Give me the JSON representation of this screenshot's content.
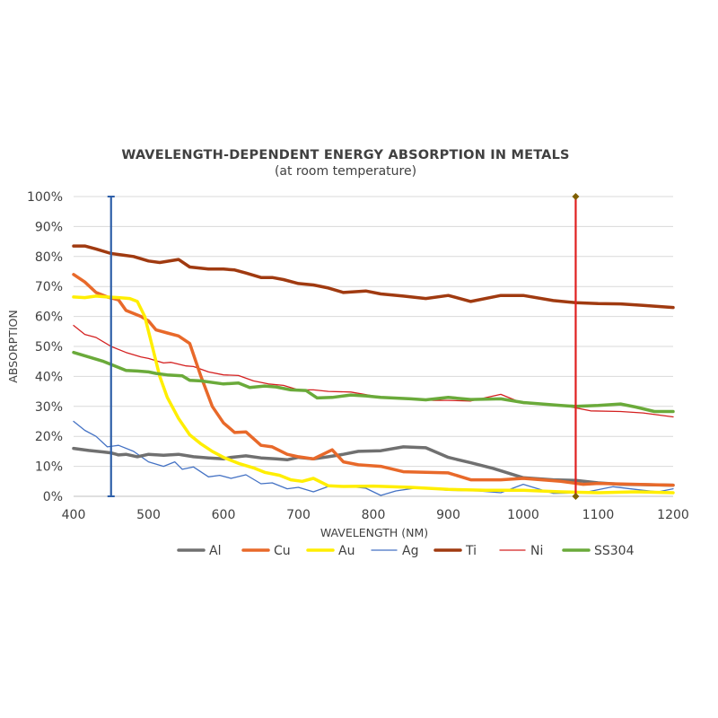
{
  "chart_data": {
    "type": "line",
    "title": "WAVELENGTH-DEPENDENT ENERGY ABSORPTION IN METALS",
    "subtitle": "(at room temperature)",
    "xlabel": "WAVELENGTH (NM)",
    "ylabel": "ABSORPTION",
    "xlim": [
      400,
      1200
    ],
    "ylim": [
      0,
      100
    ],
    "x_ticks": [
      "400",
      "500",
      "600",
      "700",
      "800",
      "900",
      "1000",
      "1100",
      "1200"
    ],
    "y_ticks": [
      "0%",
      "10%",
      "20%",
      "30%",
      "40%",
      "50%",
      "60%",
      "70%",
      "80%",
      "90%",
      "100%"
    ],
    "grid": true,
    "legend_position": "bottom",
    "markers": [
      {
        "x": 450,
        "y_range": [
          0,
          100
        ],
        "color": "#2e5fa8"
      },
      {
        "x": 1070,
        "y_range": [
          0,
          100
        ],
        "color": "#e02020",
        "end_color": "#7f5f00"
      }
    ],
    "series": [
      {
        "name": "Al",
        "color": "#707070",
        "width": 3.5,
        "points": [
          [
            400,
            16
          ],
          [
            420,
            15.3
          ],
          [
            440,
            14.8
          ],
          [
            450,
            14.5
          ],
          [
            460,
            13.8
          ],
          [
            470,
            14
          ],
          [
            485,
            13.2
          ],
          [
            500,
            14
          ],
          [
            520,
            13.7
          ],
          [
            540,
            14
          ],
          [
            560,
            13.2
          ],
          [
            580,
            12.8
          ],
          [
            600,
            12.5
          ],
          [
            610,
            13
          ],
          [
            630,
            13.5
          ],
          [
            650,
            12.8
          ],
          [
            670,
            12.5
          ],
          [
            685,
            12.2
          ],
          [
            700,
            13
          ],
          [
            720,
            12.5
          ],
          [
            740,
            13.2
          ],
          [
            760,
            14
          ],
          [
            780,
            15
          ],
          [
            810,
            15.2
          ],
          [
            840,
            16.5
          ],
          [
            870,
            16.2
          ],
          [
            900,
            13
          ],
          [
            930,
            11.2
          ],
          [
            960,
            9.3
          ],
          [
            1000,
            6.2
          ],
          [
            1040,
            5.5
          ],
          [
            1070,
            5.3
          ],
          [
            1100,
            4.5
          ],
          [
            1130,
            4
          ],
          [
            1160,
            3.9
          ],
          [
            1200,
            3.7
          ]
        ]
      },
      {
        "name": "Cu",
        "color": "#e8692a",
        "width": 3.5,
        "points": [
          [
            400,
            74
          ],
          [
            415,
            71.5
          ],
          [
            430,
            68
          ],
          [
            445,
            66.5
          ],
          [
            460,
            65.5
          ],
          [
            470,
            62
          ],
          [
            490,
            60
          ],
          [
            500,
            58.5
          ],
          [
            510,
            55.5
          ],
          [
            525,
            54.5
          ],
          [
            540,
            53.5
          ],
          [
            555,
            51
          ],
          [
            570,
            40
          ],
          [
            585,
            30
          ],
          [
            600,
            24.5
          ],
          [
            615,
            21.3
          ],
          [
            630,
            21.5
          ],
          [
            650,
            17
          ],
          [
            665,
            16.5
          ],
          [
            685,
            14
          ],
          [
            700,
            13.2
          ],
          [
            720,
            12.5
          ],
          [
            745,
            15.5
          ],
          [
            760,
            11.5
          ],
          [
            780,
            10.5
          ],
          [
            810,
            10
          ],
          [
            840,
            8.2
          ],
          [
            870,
            8
          ],
          [
            900,
            7.8
          ],
          [
            930,
            5.5
          ],
          [
            970,
            5.5
          ],
          [
            1000,
            6
          ],
          [
            1050,
            5
          ],
          [
            1080,
            4
          ],
          [
            1100,
            4.3
          ],
          [
            1150,
            4
          ],
          [
            1200,
            3.7
          ]
        ]
      },
      {
        "name": "Au",
        "color": "#ffee00",
        "width": 3.5,
        "points": [
          [
            400,
            66.5
          ],
          [
            415,
            66.3
          ],
          [
            430,
            66.8
          ],
          [
            445,
            66.5
          ],
          [
            460,
            66.3
          ],
          [
            475,
            66
          ],
          [
            485,
            65
          ],
          [
            495,
            60
          ],
          [
            505,
            50
          ],
          [
            515,
            40
          ],
          [
            525,
            33
          ],
          [
            540,
            26
          ],
          [
            555,
            20.5
          ],
          [
            570,
            17.5
          ],
          [
            585,
            15
          ],
          [
            600,
            13
          ],
          [
            620,
            11
          ],
          [
            640,
            9.5
          ],
          [
            655,
            8
          ],
          [
            675,
            7
          ],
          [
            690,
            5.5
          ],
          [
            705,
            5
          ],
          [
            720,
            6
          ],
          [
            740,
            3.5
          ],
          [
            760,
            3.3
          ],
          [
            800,
            3.4
          ],
          [
            850,
            3
          ],
          [
            900,
            2.3
          ],
          [
            950,
            2
          ],
          [
            1000,
            2
          ],
          [
            1050,
            1.5
          ],
          [
            1100,
            1.2
          ],
          [
            1150,
            1.5
          ],
          [
            1200,
            1.2
          ]
        ]
      },
      {
        "name": "Ag",
        "color": "#4472c4",
        "width": 1.3,
        "points": [
          [
            400,
            25
          ],
          [
            415,
            22
          ],
          [
            430,
            20
          ],
          [
            445,
            16.5
          ],
          [
            460,
            17
          ],
          [
            480,
            15
          ],
          [
            500,
            11.5
          ],
          [
            520,
            10
          ],
          [
            535,
            11.5
          ],
          [
            545,
            9
          ],
          [
            560,
            9.8
          ],
          [
            580,
            6.5
          ],
          [
            595,
            7
          ],
          [
            610,
            6
          ],
          [
            630,
            7.2
          ],
          [
            650,
            4.2
          ],
          [
            665,
            4.5
          ],
          [
            685,
            2.5
          ],
          [
            700,
            3
          ],
          [
            720,
            1.5
          ],
          [
            740,
            3.3
          ],
          [
            760,
            3.5
          ],
          [
            790,
            2.7
          ],
          [
            810,
            0.3
          ],
          [
            830,
            1.8
          ],
          [
            860,
            2.9
          ],
          [
            900,
            2
          ],
          [
            940,
            1.8
          ],
          [
            970,
            1.2
          ],
          [
            1000,
            4
          ],
          [
            1040,
            1
          ],
          [
            1080,
            1.2
          ],
          [
            1120,
            3.2
          ],
          [
            1160,
            2
          ],
          [
            1180,
            1.5
          ],
          [
            1200,
            2.5
          ]
        ]
      },
      {
        "name": "Ti",
        "color": "#a03a10",
        "width": 3.5,
        "points": [
          [
            400,
            83.5
          ],
          [
            415,
            83.5
          ],
          [
            430,
            82.5
          ],
          [
            450,
            81
          ],
          [
            465,
            80.5
          ],
          [
            480,
            80
          ],
          [
            500,
            78.5
          ],
          [
            515,
            78
          ],
          [
            540,
            79
          ],
          [
            555,
            76.5
          ],
          [
            580,
            75.8
          ],
          [
            600,
            75.8
          ],
          [
            615,
            75.5
          ],
          [
            630,
            74.5
          ],
          [
            650,
            73
          ],
          [
            665,
            73
          ],
          [
            680,
            72.3
          ],
          [
            700,
            71
          ],
          [
            720,
            70.5
          ],
          [
            740,
            69.5
          ],
          [
            760,
            68
          ],
          [
            790,
            68.5
          ],
          [
            810,
            67.5
          ],
          [
            840,
            66.8
          ],
          [
            870,
            66
          ],
          [
            900,
            67
          ],
          [
            930,
            65
          ],
          [
            970,
            67
          ],
          [
            1000,
            67
          ],
          [
            1040,
            65.3
          ],
          [
            1070,
            64.6
          ],
          [
            1100,
            64.3
          ],
          [
            1130,
            64.2
          ],
          [
            1160,
            63.7
          ],
          [
            1200,
            63
          ]
        ]
      },
      {
        "name": "Ni",
        "color": "#d42020",
        "width": 1.3,
        "points": [
          [
            400,
            57
          ],
          [
            415,
            54
          ],
          [
            430,
            53
          ],
          [
            450,
            50
          ],
          [
            470,
            48
          ],
          [
            490,
            46.5
          ],
          [
            500,
            46
          ],
          [
            520,
            44.5
          ],
          [
            530,
            44.7
          ],
          [
            550,
            43.5
          ],
          [
            560,
            43.3
          ],
          [
            580,
            41.5
          ],
          [
            600,
            40.5
          ],
          [
            620,
            40.3
          ],
          [
            640,
            38.5
          ],
          [
            660,
            37.5
          ],
          [
            680,
            37
          ],
          [
            700,
            35.5
          ],
          [
            720,
            35.5
          ],
          [
            740,
            35
          ],
          [
            770,
            34.8
          ],
          [
            800,
            33.5
          ],
          [
            820,
            32.8
          ],
          [
            850,
            32.5
          ],
          [
            880,
            32
          ],
          [
            900,
            32
          ],
          [
            930,
            31.8
          ],
          [
            970,
            34
          ],
          [
            1000,
            31
          ],
          [
            1030,
            30.5
          ],
          [
            1060,
            30
          ],
          [
            1090,
            28.5
          ],
          [
            1130,
            28.3
          ],
          [
            1160,
            27.8
          ],
          [
            1200,
            26.5
          ]
        ]
      },
      {
        "name": "SS304",
        "color": "#6aaa3a",
        "width": 3.5,
        "points": [
          [
            400,
            48
          ],
          [
            420,
            46.5
          ],
          [
            440,
            45
          ],
          [
            455,
            43.5
          ],
          [
            470,
            42
          ],
          [
            485,
            41.8
          ],
          [
            500,
            41.5
          ],
          [
            510,
            41
          ],
          [
            525,
            40.5
          ],
          [
            545,
            40.2
          ],
          [
            555,
            38.7
          ],
          [
            570,
            38.5
          ],
          [
            590,
            37.8
          ],
          [
            600,
            37.5
          ],
          [
            620,
            37.8
          ],
          [
            635,
            36.3
          ],
          [
            655,
            36.8
          ],
          [
            670,
            36.5
          ],
          [
            690,
            35.5
          ],
          [
            710,
            35.3
          ],
          [
            725,
            32.8
          ],
          [
            745,
            33
          ],
          [
            770,
            33.8
          ],
          [
            790,
            33.5
          ],
          [
            810,
            33
          ],
          [
            850,
            32.5
          ],
          [
            870,
            32.2
          ],
          [
            900,
            33
          ],
          [
            930,
            32.3
          ],
          [
            970,
            32.5
          ],
          [
            1000,
            31.3
          ],
          [
            1050,
            30.3
          ],
          [
            1070,
            30
          ],
          [
            1100,
            30.3
          ],
          [
            1130,
            30.8
          ],
          [
            1150,
            29.8
          ],
          [
            1175,
            28.3
          ],
          [
            1200,
            28.3
          ]
        ]
      }
    ]
  }
}
